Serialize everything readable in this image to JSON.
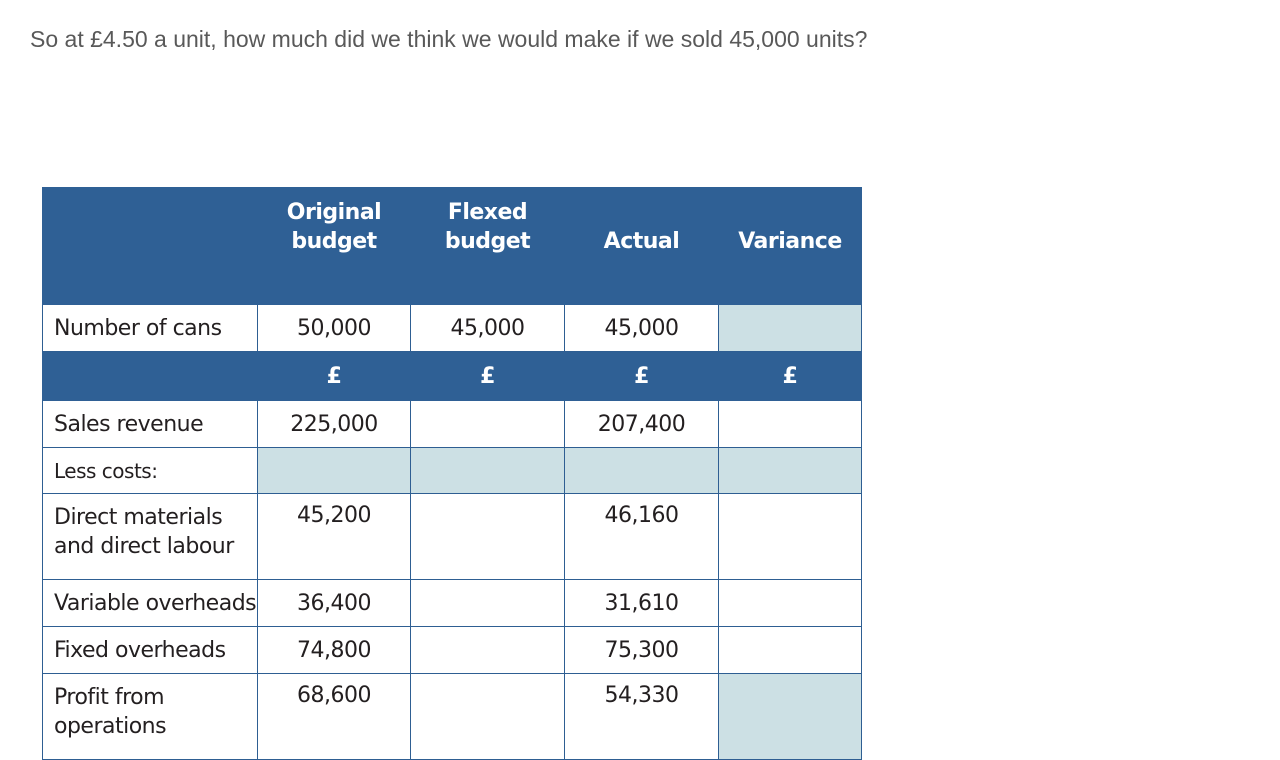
{
  "question": "So at £4.50 a unit, how much did we think we would make if we sold 45,000 units?",
  "table": {
    "headers": {
      "label": "",
      "original_line1": "Original",
      "original_line2": "budget",
      "flexed_line1": "Flexed",
      "flexed_line2": "budget",
      "actual": "Actual",
      "variance": "Variance"
    },
    "currency_row": [
      "",
      "£",
      "£",
      "£",
      "£"
    ],
    "rows": [
      {
        "label": "Number of cans",
        "original": "50,000",
        "flexed": "45,000",
        "actual": "45,000",
        "variance": ""
      },
      {
        "label": "Sales revenue",
        "original": "225,000",
        "flexed": "",
        "actual": "207,400",
        "variance": ""
      },
      {
        "label": "Less costs:",
        "original": "",
        "flexed": "",
        "actual": "",
        "variance": ""
      },
      {
        "label_line1": "Direct materials",
        "label_line2": "and direct labour",
        "original": "45,200",
        "flexed": "",
        "actual": "46,160",
        "variance": ""
      },
      {
        "label": "Variable overheads",
        "original": "36,400",
        "flexed": "",
        "actual": "31,610",
        "variance": ""
      },
      {
        "label": "Fixed overheads",
        "original": "74,800",
        "flexed": "",
        "actual": "75,300",
        "variance": ""
      },
      {
        "label_line1": "Profit from",
        "label_line2": "operations",
        "original": "68,600",
        "flexed": "",
        "actual": "54,330",
        "variance": ""
      }
    ]
  },
  "colors": {
    "header_bg": "#2f6095",
    "shade": "#cce0e4",
    "border": "#2e5e92",
    "question_text": "#595959"
  }
}
